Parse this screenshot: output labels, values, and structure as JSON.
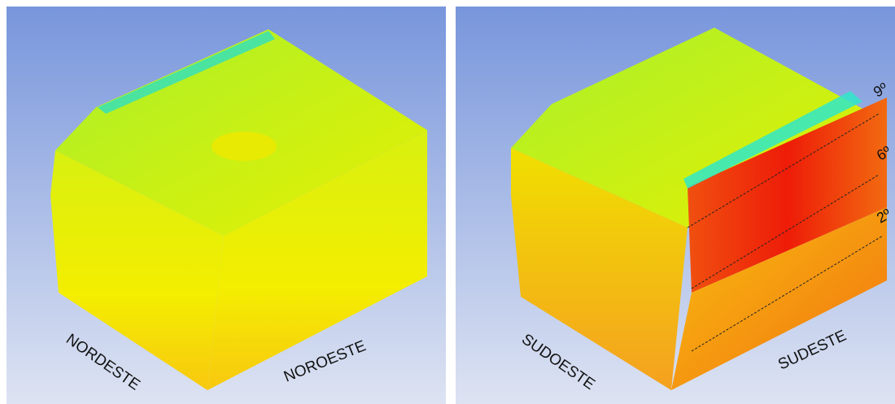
{
  "panels": [
    {
      "labels": [
        "NORDESTE",
        "NOROESTE"
      ]
    },
    {
      "labels": [
        "SUDOESTE",
        "SUDESTE"
      ],
      "floors": [
        "9º",
        "6º",
        "2º"
      ]
    }
  ]
}
